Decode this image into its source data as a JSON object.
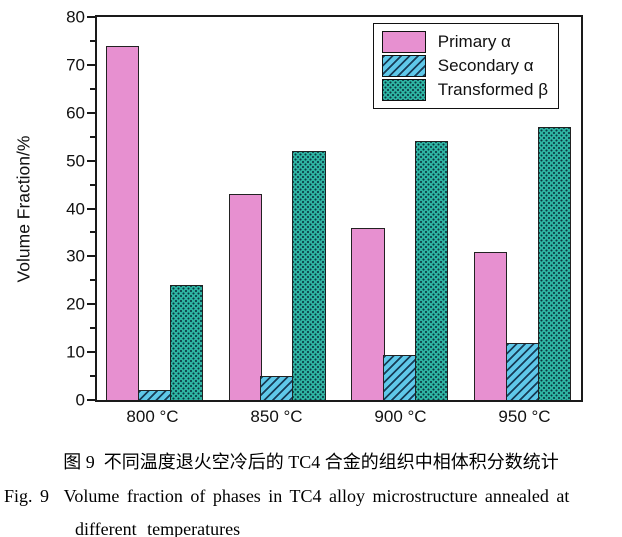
{
  "caption": {
    "zh": "图 9  不同温度退火空冷后的 TC4 合金的组织中相体积分数统计",
    "en_line1": "Fig. 9  Volume fraction of phases in TC4 alloy microstructure annealed at",
    "en_line2": "different temperatures"
  },
  "chart_data": {
    "type": "bar",
    "title": "",
    "xlabel": "",
    "ylabel": "Volume Fraction/%",
    "ylim": [
      0,
      80
    ],
    "y_major_step": 10,
    "y_minor_step": 5,
    "grid": false,
    "legend_position": "top-right",
    "frame": "box",
    "categories": [
      "800 °C",
      "850 °C",
      "900 °C",
      "950 °C"
    ],
    "series": [
      {
        "name": "Primary α",
        "values": [
          74,
          43,
          36,
          31
        ],
        "color": "#e790d0",
        "pattern": "solid"
      },
      {
        "name": "Secondary α",
        "values": [
          2,
          5,
          9.5,
          12
        ],
        "color": "#5fc8e9",
        "pattern": "diagonal-hatch"
      },
      {
        "name": "Transformed β",
        "values": [
          24,
          52,
          54,
          57
        ],
        "color": "#2eb4a2",
        "pattern": "dots"
      }
    ],
    "bar_outline_color": "#222222",
    "axis_color": "#1a1a1a"
  }
}
